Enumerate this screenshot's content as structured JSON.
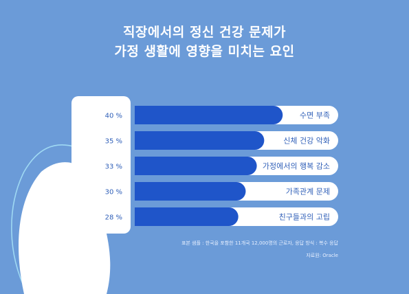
{
  "title_lines": [
    "직장에서의 정신 건강 문제가",
    "가정 생활에 영향을 미치는 요인"
  ],
  "colors": {
    "background": "#6b9bd8",
    "bar_track": "#ffffff",
    "bar_fill": "#1f55c9",
    "label_panel": "#ffffff",
    "text_blue": "#2f5fb8"
  },
  "chart_data": {
    "type": "bar",
    "orientation": "horizontal",
    "categories": [
      "수면 부족",
      "신체 건강 악화",
      "가정에서의 행복 감소",
      "가족관계 문제",
      "친구들과의 고립"
    ],
    "values": [
      40,
      35,
      33,
      30,
      28
    ],
    "value_labels": [
      "40 %",
      "35 %",
      "33 %",
      "30 %",
      "28 %"
    ],
    "xlim": [
      0,
      55
    ],
    "title": "직장에서의 정신 건강 문제가 가정 생활에 영향을 미치는 요인"
  },
  "footnotes": {
    "sample": "표본 샘플 : 한국을 포함한 11개국 12,000명의 근로자, 응답 방식 : 복수 응답",
    "source": "자료원: Oracle"
  }
}
